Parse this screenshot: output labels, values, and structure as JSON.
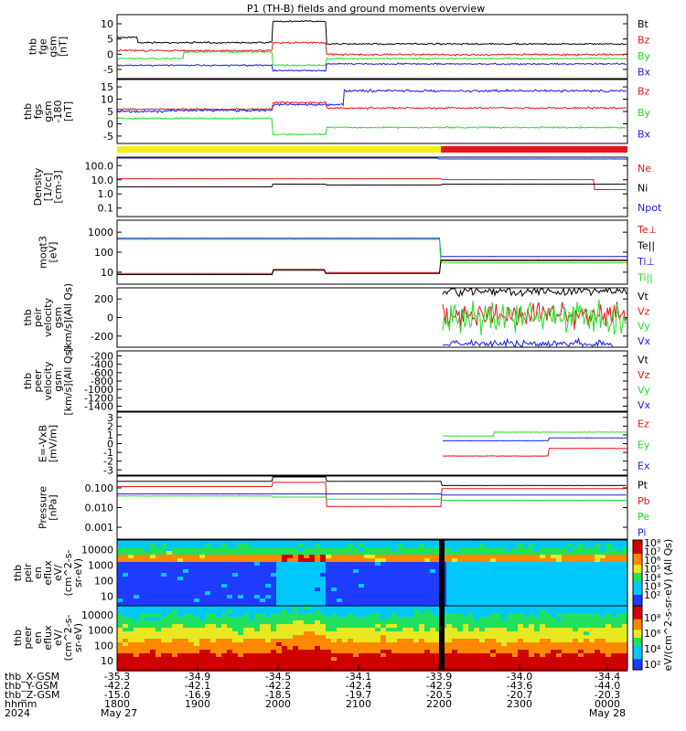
{
  "title": "P1 (TH-B) fields and ground moments overview",
  "colors": {
    "black": "#000000",
    "red": "#e8141a",
    "green": "#22dd22",
    "blue": "#1a1ae6",
    "yellow": "#f5ee1a"
  },
  "chart_data": [
    {
      "type": "line",
      "ylabel_lines": [
        "thb",
        "fge",
        "gsm",
        "[nT]"
      ],
      "ylim": [
        -9,
        15
      ],
      "ticks": [
        "10",
        "5",
        "0",
        "-5"
      ],
      "legend": [
        {
          "label": "Bt",
          "color": "black"
        },
        {
          "label": "Bz",
          "color": "red"
        },
        {
          "label": "By",
          "color": "green"
        },
        {
          "label": "Bx",
          "color": "blue"
        }
      ]
    },
    {
      "type": "line",
      "ylabel_lines": [
        "thb",
        "fgs",
        "gsm",
        "-180",
        "[nT]"
      ],
      "ylim": [
        -8,
        20
      ],
      "ticks": [
        "15",
        "10",
        "5",
        "0",
        "-5"
      ],
      "legend": [
        {
          "label": "Bz",
          "color": "red"
        },
        {
          "label": "By",
          "color": "green"
        },
        {
          "label": "Bx",
          "color": "blue"
        }
      ]
    },
    {
      "type": "line",
      "ylabel_lines": [
        "Density",
        "[1/cc]",
        "[cm-3]"
      ],
      "scale": "log",
      "ticks": [
        "100.0",
        "10.0",
        "1.0",
        "0.1"
      ],
      "legend": [
        {
          "label": "Ne",
          "color": "red"
        },
        {
          "label": "Ni",
          "color": "black"
        },
        {
          "label": "Npot",
          "color": "blue"
        }
      ]
    },
    {
      "type": "line",
      "ylabel_lines": [
        "moqt3",
        "[eV]"
      ],
      "scale": "log",
      "ticks": [
        "1000",
        "100",
        "10"
      ],
      "legend": [
        {
          "label": "Te⊥",
          "color": "red"
        },
        {
          "label": "Te||",
          "color": "black"
        },
        {
          "label": "Ti⊥",
          "color": "blue"
        },
        {
          "label": "Ti||",
          "color": "green"
        }
      ]
    },
    {
      "type": "line",
      "ylabel_lines": [
        "thb",
        "peir",
        "velocity",
        "gsm",
        "[km/s](All Qs)"
      ],
      "ticks": [
        "200",
        "0",
        "-200"
      ],
      "legend": [
        {
          "label": "Vt",
          "color": "black"
        },
        {
          "label": "Vz",
          "color": "red"
        },
        {
          "label": "Vy",
          "color": "green"
        },
        {
          "label": "Vx",
          "color": "blue"
        }
      ]
    },
    {
      "type": "line",
      "ylabel_lines": [
        "thb",
        "peer",
        "velocity",
        "gsm",
        "[km/s](All Qs)"
      ],
      "ticks": [
        "-200",
        "-400",
        "-600",
        "-800",
        "-1000",
        "-1200",
        "-1400"
      ],
      "legend": [
        {
          "label": "Vt",
          "color": "black"
        },
        {
          "label": "Vz",
          "color": "red"
        },
        {
          "label": "Vy",
          "color": "green"
        },
        {
          "label": "Vx",
          "color": "blue"
        }
      ]
    },
    {
      "type": "line",
      "ylabel_lines": [
        "E=-VxB",
        "[mV/m]"
      ],
      "ticks": [
        "3",
        "2",
        "1",
        "0",
        "-1",
        "-2",
        "-3"
      ],
      "legend": [
        {
          "label": "Ez",
          "color": "red"
        },
        {
          "label": "Ey",
          "color": "green"
        },
        {
          "label": "Ex",
          "color": "blue"
        }
      ]
    },
    {
      "type": "line",
      "ylabel_lines": [
        "Pressure",
        "[nPa]"
      ],
      "scale": "log",
      "ticks": [
        "0.100",
        "0.010",
        "0.001"
      ],
      "legend": [
        {
          "label": "Pt",
          "color": "black"
        },
        {
          "label": "Pb",
          "color": "red"
        },
        {
          "label": "Pe",
          "color": "green"
        },
        {
          "label": "Pi",
          "color": "blue"
        }
      ]
    },
    {
      "type": "heatmap",
      "ylabel_lines": [
        "thb",
        "peir",
        "en",
        "eflux",
        "eV/",
        "(cm^2-s-",
        "sr-eV)"
      ],
      "ticks": [
        "10000",
        "1000",
        "100",
        "10"
      ]
    },
    {
      "type": "heatmap",
      "ylabel_lines": [
        "thb",
        "peer",
        "en",
        "eflux",
        "eV/",
        "(cm^2-s-",
        "sr-eV)"
      ],
      "ticks": [
        "10000",
        "1000",
        "100",
        "10"
      ]
    }
  ],
  "colorbar": {
    "label": "eV/(cm^2-s-sr-eV) (All Qs)",
    "top_ticks": [
      "10⁸",
      "10⁷",
      "10⁶",
      "10⁵",
      "10⁴",
      "10³",
      "10²"
    ],
    "bottom_ticks": [
      "10⁸",
      "10⁶",
      "10⁴",
      "10²"
    ]
  },
  "xaxis": {
    "ticks": [
      "1800",
      "1900",
      "2000",
      "2100",
      "2200",
      "2300",
      "0000"
    ],
    "rows": [
      {
        "label": "thb_X-GSM",
        "values": [
          "-35.3",
          "-34.9",
          "-34.5",
          "-34.1",
          "-33.9",
          "-34.0",
          "-34.4"
        ]
      },
      {
        "label": "thb_Y-GSM",
        "values": [
          "-42.2",
          "-42.1",
          "-42.2",
          "-42.4",
          "-42.9",
          "-43.6",
          "-44.0"
        ]
      },
      {
        "label": "thb_Z-GSM",
        "values": [
          "-15.0",
          "-16.9",
          "-18.5",
          "-19.7",
          "-20.5",
          "-20.7",
          "-20.3"
        ]
      },
      {
        "label": "hhmm",
        "values": [
          "1800",
          "1900",
          "2000",
          "2100",
          "2200",
          "2300",
          "0000"
        ]
      }
    ],
    "year": "2024",
    "date_start": "May 27",
    "date_end": "May 28"
  }
}
